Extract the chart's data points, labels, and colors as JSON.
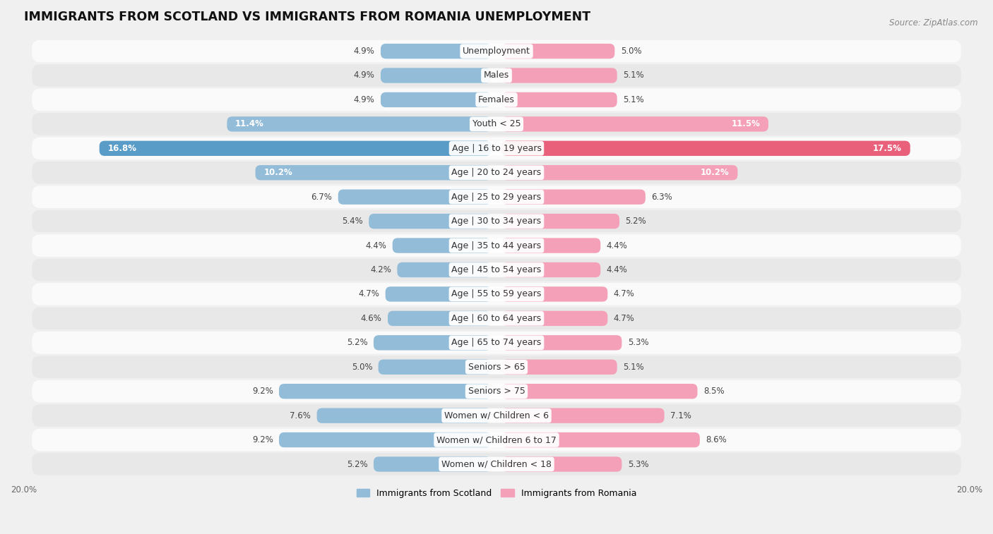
{
  "title": "IMMIGRANTS FROM SCOTLAND VS IMMIGRANTS FROM ROMANIA UNEMPLOYMENT",
  "source": "Source: ZipAtlas.com",
  "categories": [
    "Unemployment",
    "Males",
    "Females",
    "Youth < 25",
    "Age | 16 to 19 years",
    "Age | 20 to 24 years",
    "Age | 25 to 29 years",
    "Age | 30 to 34 years",
    "Age | 35 to 44 years",
    "Age | 45 to 54 years",
    "Age | 55 to 59 years",
    "Age | 60 to 64 years",
    "Age | 65 to 74 years",
    "Seniors > 65",
    "Seniors > 75",
    "Women w/ Children < 6",
    "Women w/ Children 6 to 17",
    "Women w/ Children < 18"
  ],
  "scotland_values": [
    4.9,
    4.9,
    4.9,
    11.4,
    16.8,
    10.2,
    6.7,
    5.4,
    4.4,
    4.2,
    4.7,
    4.6,
    5.2,
    5.0,
    9.2,
    7.6,
    9.2,
    5.2
  ],
  "romania_values": [
    5.0,
    5.1,
    5.1,
    11.5,
    17.5,
    10.2,
    6.3,
    5.2,
    4.4,
    4.4,
    4.7,
    4.7,
    5.3,
    5.1,
    8.5,
    7.1,
    8.6,
    5.3
  ],
  "scotland_color": "#92bcd8",
  "romania_color": "#f4a0b8",
  "scotland_highlight_color": "#5a9cc8",
  "romania_highlight_color": "#e8607a",
  "background_color": "#f0f0f0",
  "row_bg_light": "#fafafa",
  "row_bg_dark": "#e8e8e8",
  "max_value": 20.0,
  "legend_scotland": "Immigrants from Scotland",
  "legend_romania": "Immigrants from Romania",
  "title_fontsize": 12.5,
  "label_fontsize": 9.0,
  "value_fontsize": 8.5
}
